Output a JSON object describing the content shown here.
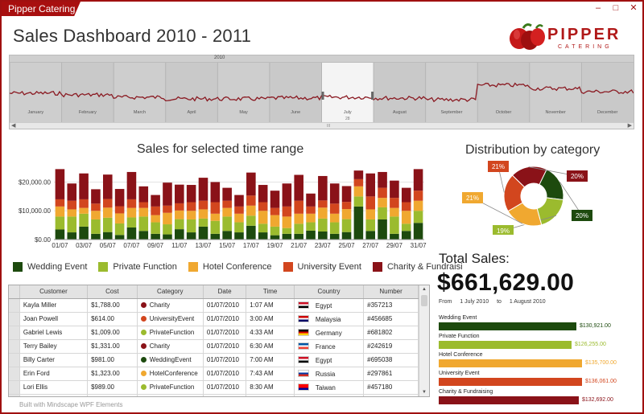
{
  "window": {
    "title": "Pipper Catering",
    "min": "–",
    "max": "□",
    "close": "✕"
  },
  "page": {
    "title": "Sales Dashboard 2010 - 2011"
  },
  "logo": {
    "word": "PIPPER",
    "sub": "CATERING"
  },
  "timeline": {
    "year_label": "2010",
    "months": [
      "January",
      "February",
      "March",
      "April",
      "May",
      "June",
      "July",
      "August",
      "September",
      "October",
      "November",
      "December"
    ],
    "selected_month": "July",
    "selected_week": "28"
  },
  "sales_chart": {
    "title": "Sales for selected time range"
  },
  "chart_data": {
    "type": "bar",
    "stacked": true,
    "yticks": [
      "$0.00",
      "$10,000.00",
      "$20,000.00"
    ],
    "ylim": [
      0,
      26000
    ],
    "xtick_labels": [
      "01/07",
      "03/07",
      "05/07",
      "07/07",
      "09/07",
      "11/07",
      "13/07",
      "15/07",
      "17/07",
      "19/07",
      "21/07",
      "23/07",
      "25/07",
      "27/07",
      "29/07",
      "31/07"
    ],
    "categories": [
      "01/07",
      "02/07",
      "03/07",
      "04/07",
      "05/07",
      "06/07",
      "07/07",
      "08/07",
      "09/07",
      "10/07",
      "11/07",
      "12/07",
      "13/07",
      "14/07",
      "15/07",
      "16/07",
      "17/07",
      "18/07",
      "19/07",
      "20/07",
      "21/07",
      "22/07",
      "23/07",
      "24/07",
      "25/07",
      "26/07",
      "27/07",
      "28/07",
      "29/07",
      "30/07",
      "31/07"
    ],
    "series": [
      {
        "name": "Wedding Event",
        "color": "#1d4a0e",
        "values": [
          3500,
          2500,
          4500,
          2000,
          2600,
          1600,
          4200,
          3000,
          2000,
          1800,
          3600,
          2500,
          4500,
          2000,
          3000,
          2500,
          4800,
          2500,
          1500,
          2000,
          2000,
          3100,
          2800,
          2000,
          2600,
          11500,
          3000,
          7000,
          2000,
          3000,
          5800
        ]
      },
      {
        "name": "Private Function",
        "color": "#9bbb2e",
        "values": [
          4500,
          5500,
          4500,
          5000,
          5000,
          4000,
          3500,
          5000,
          4000,
          3500,
          3500,
          4500,
          2800,
          4500,
          5000,
          3500,
          3500,
          3000,
          3000,
          2000,
          3500,
          2900,
          4500,
          4000,
          4500,
          3500,
          4000,
          4200,
          6000,
          2500,
          4200
        ]
      },
      {
        "name": "Hotel Conference",
        "color": "#f0a830",
        "values": [
          3500,
          2500,
          2000,
          3000,
          3500,
          3500,
          3300,
          3000,
          2500,
          4000,
          3000,
          3000,
          3200,
          2500,
          3000,
          3000,
          3500,
          4500,
          4000,
          4000,
          3500,
          3000,
          3800,
          3000,
          3500,
          3500,
          3500,
          3300,
          3000,
          4500,
          3500
        ]
      },
      {
        "name": "University Event",
        "color": "#d2461e",
        "values": [
          2500,
          3000,
          3000,
          2500,
          3000,
          2500,
          3000,
          2000,
          3000,
          2500,
          2500,
          3000,
          3000,
          4000,
          2500,
          2500,
          3500,
          3000,
          2500,
          3500,
          4500,
          2500,
          2500,
          3500,
          2500,
          2500,
          4500,
          3500,
          3500,
          3000,
          3500
        ]
      },
      {
        "name": "Charity & Fundraising",
        "color": "#8a1218",
        "values": [
          10500,
          6000,
          9000,
          5000,
          8500,
          6000,
          9500,
          5500,
          4000,
          8000,
          6500,
          6000,
          8000,
          7000,
          4500,
          4000,
          8000,
          6000,
          6000,
          8000,
          9000,
          4500,
          8500,
          7000,
          5500,
          3000,
          8000,
          5500,
          6000,
          5000,
          7500
        ]
      }
    ]
  },
  "legend": [
    {
      "label": "Wedding Event",
      "color": "#1d4a0e"
    },
    {
      "label": "Private Function",
      "color": "#9bbb2e"
    },
    {
      "label": "Hotel Conference",
      "color": "#f0a830"
    },
    {
      "label": "University Event",
      "color": "#d2461e"
    },
    {
      "label": "Charity & Fundraisi",
      "color": "#8a1218"
    }
  ],
  "distribution": {
    "title": "Distribution by category",
    "slices": [
      {
        "pct": 20,
        "label": "20%",
        "color": "#1d4a0e"
      },
      {
        "pct": 19,
        "label": "19%",
        "color": "#9bbb2e"
      },
      {
        "pct": 21,
        "label": "21%",
        "color": "#f0a830"
      },
      {
        "pct": 21,
        "label": "21%",
        "color": "#d2461e"
      },
      {
        "pct": 20,
        "label": "20%",
        "color": "#8a1218"
      }
    ]
  },
  "grid": {
    "columns": [
      "Customer",
      "Cost",
      "Category",
      "Date",
      "Time",
      "Country",
      "Number"
    ],
    "rows": [
      {
        "customer": "Kayla Miller",
        "cost": "$1,788.00",
        "category": "Charity",
        "cat_color": "#8a1218",
        "date": "01/07/2010",
        "time": "1:07 AM",
        "country": "Egypt",
        "flag": [
          "#ce1126",
          "#ffffff",
          "#000000"
        ],
        "number": "#357213"
      },
      {
        "customer": "Joan Powell",
        "cost": "$614.00",
        "category": "UniversityEvent",
        "cat_color": "#d2461e",
        "date": "01/07/2010",
        "time": "3:00 AM",
        "country": "Malaysia",
        "flag": [
          "#cc0001",
          "#ffffff",
          "#010066"
        ],
        "number": "#456685"
      },
      {
        "customer": "Gabriel Lewis",
        "cost": "$1,009.00",
        "category": "PrivateFunction",
        "cat_color": "#9bbb2e",
        "date": "01/07/2010",
        "time": "4:33 AM",
        "country": "Germany",
        "flag": [
          "#000000",
          "#dd0000",
          "#ffce00"
        ],
        "number": "#681802"
      },
      {
        "customer": "Terry Bailey",
        "cost": "$1,331.00",
        "category": "Charity",
        "cat_color": "#8a1218",
        "date": "01/07/2010",
        "time": "6:30 AM",
        "country": "France",
        "flag": [
          "#0055a4",
          "#ffffff",
          "#ef4135"
        ],
        "number": "#242619"
      },
      {
        "customer": "Billy Carter",
        "cost": "$981.00",
        "category": "WeddingEvent",
        "cat_color": "#1d4a0e",
        "date": "01/07/2010",
        "time": "7:00 AM",
        "country": "Egypt",
        "flag": [
          "#ce1126",
          "#ffffff",
          "#000000"
        ],
        "number": "#695038"
      },
      {
        "customer": "Erin Ford",
        "cost": "$1,323.00",
        "category": "HotelConference",
        "cat_color": "#f0a830",
        "date": "01/07/2010",
        "time": "7:43 AM",
        "country": "Russia",
        "flag": [
          "#ffffff",
          "#0039a6",
          "#d52b1e"
        ],
        "number": "#297861"
      },
      {
        "customer": "Lori Ellis",
        "cost": "$989.00",
        "category": "PrivateFunction",
        "cat_color": "#9bbb2e",
        "date": "01/07/2010",
        "time": "8:30 AM",
        "country": "Taiwan",
        "flag": [
          "#fe0000",
          "#fe0000",
          "#000095"
        ],
        "number": "#457180"
      },
      {
        "customer": "",
        "cost": "",
        "category": "",
        "cat_color": "#d2461e",
        "date": "",
        "time": "",
        "country": "",
        "flag": [
          "#cccccc",
          "#cccccc",
          "#cccccc"
        ],
        "number": ""
      }
    ]
  },
  "footer": "Built with Mindscape WPF Elements",
  "totals": {
    "label": "Total Sales:",
    "value": "$661,629.00",
    "from_label": "From",
    "from": "1 July 2010",
    "to_label": "to",
    "to": "1 August 2010"
  },
  "category_totals": [
    {
      "name": "Wedding Event",
      "value": "$130,921.00",
      "amount": 130921,
      "color": "#1d4a0e"
    },
    {
      "name": "Private Function",
      "value": "$126,255.00",
      "amount": 126255,
      "color": "#9bbb2e"
    },
    {
      "name": "Hotel Conference",
      "value": "$135,700.00",
      "amount": 135700,
      "color": "#f0a830"
    },
    {
      "name": "University Event",
      "value": "$136,061.00",
      "amount": 136061,
      "color": "#d2461e"
    },
    {
      "name": "Charity & Fundraising",
      "value": "$132,692.00",
      "amount": 132692,
      "color": "#8a1218"
    }
  ]
}
